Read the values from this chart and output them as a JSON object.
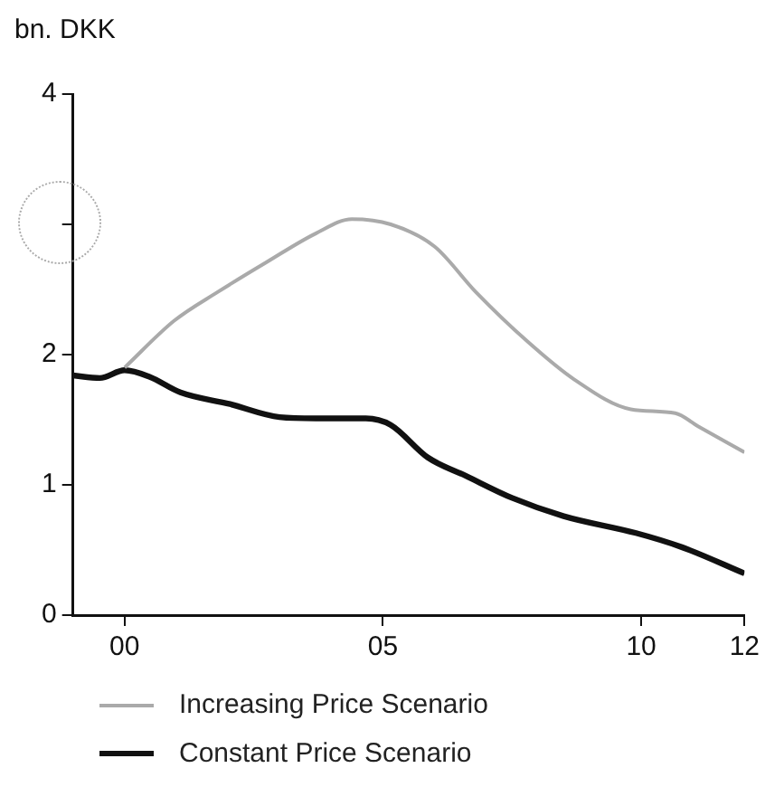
{
  "chart_data": {
    "type": "line",
    "ylabel": "bn. DKK",
    "xlim": [
      -1,
      12
    ],
    "xticks": [
      {
        "value": 0,
        "label": "00"
      },
      {
        "value": 5,
        "label": "05"
      },
      {
        "value": 10,
        "label": "10"
      },
      {
        "value": 12,
        "label": "12"
      }
    ],
    "ylim": [
      0,
      4
    ],
    "yticks": [
      0,
      1,
      2,
      {
        "value": 3,
        "label": null
      },
      4
    ],
    "grid": false,
    "legend": "bottom",
    "marker": "none",
    "series": [
      {
        "name": "Increasing Price Scenario",
        "color": "#aaaaaa",
        "x": [
          0,
          0.96,
          1.8,
          2.75,
          3.7,
          4.4,
          5.15,
          6.0,
          6.8,
          7.8,
          8.7,
          9.8,
          10.66,
          11.1,
          12
        ],
        "values": [
          1.9,
          2.26,
          2.48,
          2.71,
          2.93,
          3.04,
          3.0,
          2.83,
          2.48,
          2.1,
          1.81,
          1.58,
          1.55,
          1.45,
          1.25
        ]
      },
      {
        "name": "Constant Price Scenario",
        "color": "#111111",
        "x": [
          -1,
          -0.48,
          0,
          0.48,
          1.08,
          2.04,
          3.0,
          3.7,
          4.67,
          5.15,
          5.87,
          6.6,
          7.5,
          8.5,
          9.9,
          10.8,
          12
        ],
        "values": [
          1.84,
          1.82,
          1.88,
          1.83,
          1.71,
          1.62,
          1.52,
          1.51,
          1.51,
          1.46,
          1.21,
          1.07,
          0.9,
          0.76,
          0.63,
          0.52,
          0.32
        ]
      }
    ]
  }
}
